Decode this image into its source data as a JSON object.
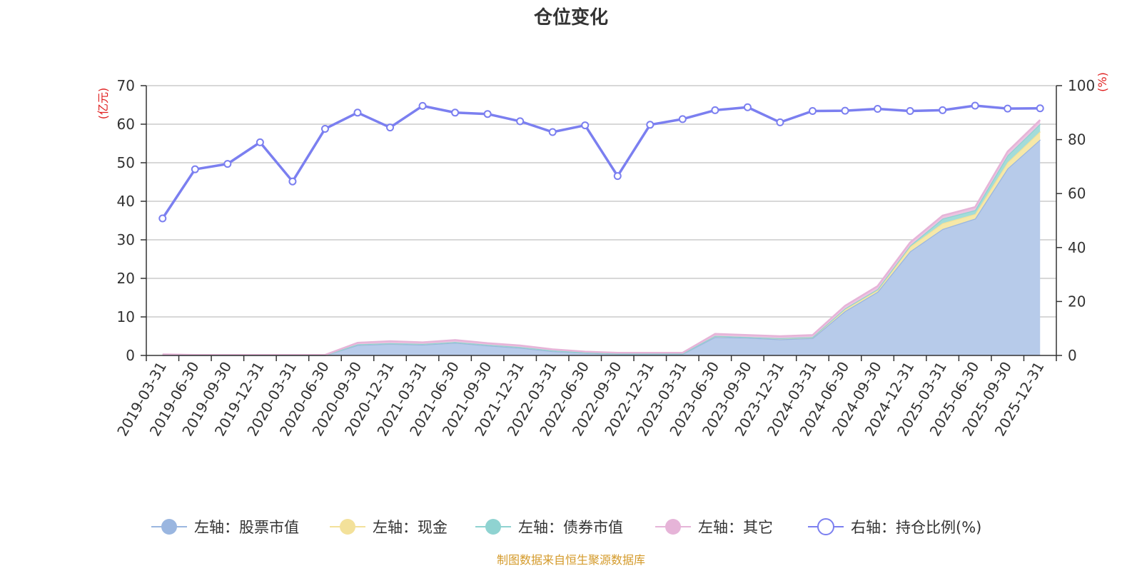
{
  "chart_data": {
    "type": "area",
    "title": "仓位变化",
    "left_unit": "(亿元)",
    "right_unit": "(%)",
    "left_ylim": [
      0,
      70
    ],
    "left_ticks": [
      "0",
      "10",
      "20",
      "30",
      "40",
      "50",
      "60",
      "70"
    ],
    "right_ylim": [
      0,
      100
    ],
    "right_ticks": [
      "0",
      "20",
      "40",
      "60",
      "80",
      "100"
    ],
    "grid": true,
    "categories": [
      "2019-03-31",
      "2019-06-30",
      "2019-09-30",
      "2019-12-31",
      "2020-03-31",
      "2020-06-30",
      "2020-09-30",
      "2020-12-31",
      "2021-03-31",
      "2021-06-30",
      "2021-09-30",
      "2021-12-31",
      "2022-03-31",
      "2022-06-30",
      "2022-09-30",
      "2022-12-31",
      "2023-03-31",
      "2023-06-30",
      "2023-09-30",
      "2023-12-31",
      "2024-03-31",
      "2024-06-30",
      "2024-09-30",
      "2024-12-31",
      "2025-03-31",
      "2025-06-30",
      "2025-09-30",
      "2025-12-31"
    ],
    "series": [
      {
        "name": "左轴：股票市值",
        "axis": "left",
        "stack": true,
        "color": "#9ab6e0",
        "fill": "#b7cbea",
        "values": [
          0.1,
          0.05,
          0.05,
          0.05,
          0.05,
          0.05,
          2.7,
          3.0,
          2.8,
          3.3,
          2.6,
          2.0,
          1.1,
          0.7,
          0.4,
          0.4,
          0.4,
          4.8,
          4.6,
          4.2,
          4.5,
          11.5,
          16.5,
          27.0,
          32.8,
          35.5,
          48.5,
          56.0
        ]
      },
      {
        "name": "左轴：现金",
        "axis": "left",
        "stack": true,
        "color": "#f3e19a",
        "fill": "#f6e8a8",
        "values": [
          0.1,
          0.05,
          0.05,
          0.05,
          0.05,
          0.05,
          0.2,
          0.2,
          0.2,
          0.2,
          0.2,
          0.2,
          0.2,
          0.1,
          0.1,
          0.1,
          0.1,
          0.3,
          0.2,
          0.3,
          0.3,
          0.6,
          0.5,
          1.2,
          1.5,
          1.2,
          1.6,
          2.1
        ]
      },
      {
        "name": "左轴：债券市值",
        "axis": "left",
        "stack": true,
        "color": "#8fd3d1",
        "fill": "#a3dcd9",
        "values": [
          0,
          0,
          0,
          0,
          0,
          0,
          0,
          0,
          0,
          0,
          0,
          0,
          0,
          0,
          0,
          0,
          0,
          0,
          0,
          0,
          0,
          0.1,
          0.2,
          0.3,
          1.2,
          1.0,
          1.8,
          2.0
        ]
      },
      {
        "name": "左轴：其它",
        "axis": "left",
        "stack": true,
        "color": "#e6b4d8",
        "fill": "#ecc4e1",
        "values": [
          0.1,
          0.05,
          0.05,
          0.05,
          0.05,
          0.05,
          0.4,
          0.5,
          0.4,
          0.5,
          0.4,
          0.4,
          0.3,
          0.2,
          0.2,
          0.2,
          0.2,
          0.5,
          0.5,
          0.5,
          0.5,
          0.7,
          0.8,
          0.8,
          0.8,
          0.8,
          1.0,
          1.0
        ]
      },
      {
        "name": "右轴：持仓比例(%)",
        "axis": "right",
        "stack": false,
        "color": "#7b7ff0",
        "values": [
          50.8,
          69.0,
          71.0,
          79.0,
          64.5,
          84.0,
          90.0,
          84.5,
          92.5,
          90.0,
          89.5,
          86.8,
          82.8,
          85.3,
          66.5,
          85.5,
          87.6,
          90.9,
          92.0,
          86.4,
          90.6,
          90.7,
          91.4,
          90.6,
          90.9,
          92.6,
          91.5,
          91.6
        ]
      }
    ],
    "legend_position": "bottom-center",
    "source": "制图数据来自恒生聚源数据库",
    "source_color": "#d49a2a",
    "unit_color": "#e02020"
  }
}
